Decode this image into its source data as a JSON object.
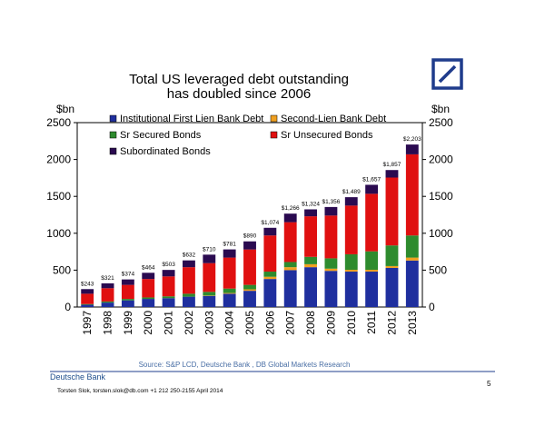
{
  "chart_data": {
    "type": "bar",
    "stacked": true,
    "title_line1": "Total US leveraged debt outstanding",
    "title_line2": "has doubled since 2006",
    "ylabel_left": "$bn",
    "ylabel_right": "$bn",
    "ylim": [
      0,
      2500
    ],
    "yticks": [
      0,
      500,
      1000,
      1500,
      2000,
      2500
    ],
    "categories": [
      "1997",
      "1998",
      "1999",
      "2000",
      "2001",
      "2002",
      "2003",
      "2004",
      "2005",
      "2006",
      "2007",
      "2008",
      "2009",
      "2010",
      "2011",
      "2012",
      "2013"
    ],
    "totals": [
      243,
      321,
      374,
      464,
      503,
      632,
      710,
      781,
      890,
      1074,
      1266,
      1324,
      1356,
      1489,
      1657,
      1857,
      2203
    ],
    "total_labels": [
      "$243",
      "$321",
      "$374",
      "$464",
      "$503",
      "$632",
      "$710",
      "$781",
      "$890",
      "$1,074",
      "$1,266",
      "$1,324",
      "$1,356",
      "$1,489",
      "$1,657",
      "$1,857",
      "$2,203"
    ],
    "series": [
      {
        "name": "Institutional First Lien Bank Debt",
        "color": "#1f2f9e",
        "values": [
          30,
          60,
          90,
          110,
          120,
          140,
          150,
          180,
          220,
          380,
          500,
          540,
          490,
          480,
          480,
          530,
          630
        ]
      },
      {
        "name": "Second-Lien Bank Debt",
        "color": "#f0a020",
        "values": [
          0,
          0,
          0,
          0,
          0,
          0,
          5,
          10,
          20,
          30,
          40,
          40,
          30,
          25,
          25,
          25,
          40
        ]
      },
      {
        "name": "Sr Secured Bonds",
        "color": "#2e8b2e",
        "values": [
          10,
          15,
          20,
          20,
          25,
          40,
          50,
          60,
          60,
          70,
          70,
          100,
          140,
          210,
          250,
          280,
          300
        ]
      },
      {
        "name": "Sr Unsecured Bonds",
        "color": "#e01010",
        "values": [
          140,
          180,
          190,
          250,
          270,
          360,
          390,
          420,
          480,
          490,
          540,
          550,
          580,
          660,
          780,
          920,
          1100
        ]
      },
      {
        "name": "Subordinated Bonds",
        "color": "#2a0a50",
        "values": [
          63,
          66,
          74,
          84,
          88,
          92,
          115,
          111,
          110,
          104,
          116,
          94,
          116,
          114,
          122,
          102,
          133
        ]
      }
    ],
    "legend_position": "top-left"
  },
  "footer": {
    "source": "Source:  S&P LCD, Deutsche Bank , DB Global Markets Research",
    "brand": "Deutsche Bank",
    "author_line": "Torsten Slok, torsten.slok@db.com  +1 212 250-2155     April 2014",
    "page_number": "5"
  },
  "colors": {
    "logo_blue": "#1f3c8c"
  }
}
